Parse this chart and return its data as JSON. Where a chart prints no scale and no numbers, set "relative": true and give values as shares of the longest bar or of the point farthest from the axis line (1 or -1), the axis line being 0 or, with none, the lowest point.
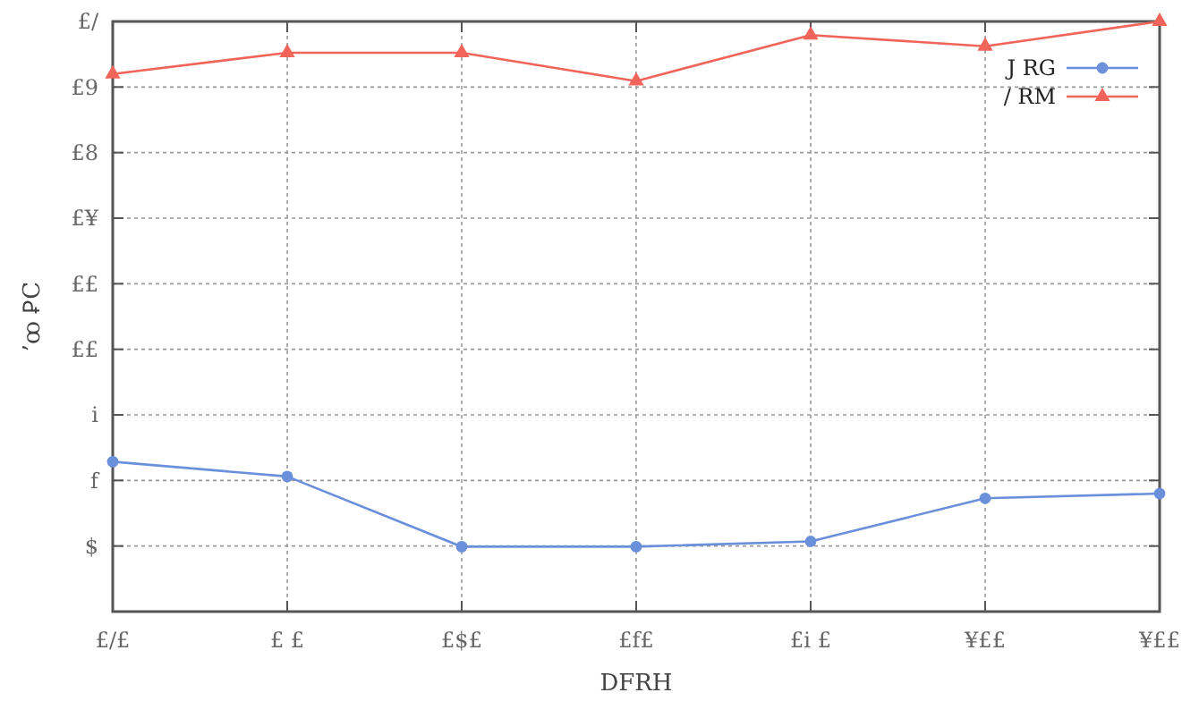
{
  "chart_data": {
    "type": "line",
    "xlabel": "DFRH",
    "ylabel": "’ꝏ ꝐC",
    "categories": [
      "£/£",
      "£ £",
      "£$£",
      "£f£",
      "£i £",
      "¥££",
      "¥££"
    ],
    "series": [
      {
        "name": "J RG",
        "color": "#6a8fdb",
        "marker": "circle",
        "values": [
          0.254,
          0.229,
          0.11,
          0.11,
          0.119,
          0.192,
          0.2
        ]
      },
      {
        "name": "/ RM",
        "color": "#f0645a",
        "marker": "triangle",
        "values": [
          0.911,
          0.947,
          0.947,
          0.899,
          0.977,
          0.958,
          1
        ]
      }
    ],
    "relative": true,
    "annotations": [
      "$",
      "f",
      "i",
      "££",
      "££",
      "£¥",
      "£8",
      "£9",
      "£/"
    ],
    "grid": true,
    "legend": "top right"
  }
}
